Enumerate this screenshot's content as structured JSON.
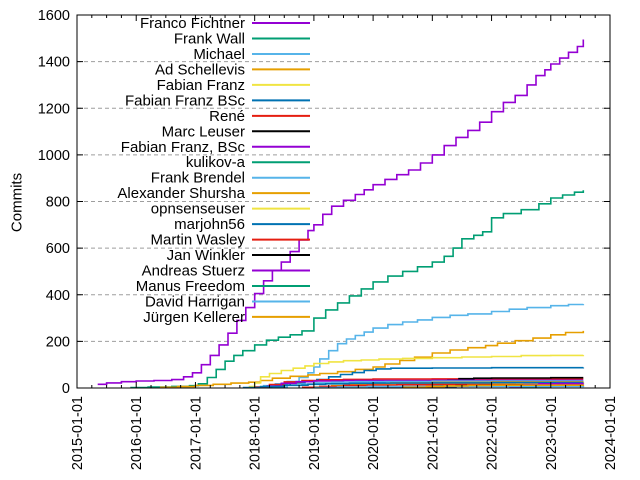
{
  "figure": {
    "background": "#ffffff",
    "border_color": "#000000",
    "grid_color": "#9e9e9e"
  },
  "chart_data": {
    "type": "line",
    "title": "",
    "xlabel": "",
    "ylabel": "Commits",
    "ylim": [
      0,
      1600
    ],
    "ytick_interval": 200,
    "x_start_year": 2015,
    "x_end_year": 2024,
    "xtick_labels": [
      "2015-01-01",
      "2016-01-01",
      "2017-01-01",
      "2018-01-01",
      "2019-01-01",
      "2020-01-01",
      "2021-01-01",
      "2022-01-01",
      "2023-01-01",
      "2024-01-01"
    ],
    "grid": "horizontal-dashed",
    "legend_position": "inside-top-left",
    "line_mode": "step-after",
    "palette": [
      "#9400d3",
      "#009e73",
      "#56b4e9",
      "#e69f00",
      "#f0e442",
      "#0072b2",
      "#e51e10",
      "#000000"
    ],
    "series": [
      {
        "name": "Franco Fichtner",
        "color": "#9400d3",
        "points": [
          [
            2015.35,
            16
          ],
          [
            2015.5,
            22
          ],
          [
            2015.75,
            27
          ],
          [
            2016.0,
            30
          ],
          [
            2016.3,
            32
          ],
          [
            2016.6,
            36
          ],
          [
            2016.8,
            48
          ],
          [
            2016.95,
            65
          ],
          [
            2017.1,
            100
          ],
          [
            2017.25,
            140
          ],
          [
            2017.4,
            185
          ],
          [
            2017.55,
            235
          ],
          [
            2017.7,
            290
          ],
          [
            2017.85,
            345
          ],
          [
            2018.0,
            405
          ],
          [
            2018.15,
            460
          ],
          [
            2018.3,
            505
          ],
          [
            2018.45,
            540
          ],
          [
            2018.6,
            585
          ],
          [
            2018.75,
            635
          ],
          [
            2018.9,
            675
          ],
          [
            2019.0,
            700
          ],
          [
            2019.15,
            745
          ],
          [
            2019.3,
            780
          ],
          [
            2019.5,
            805
          ],
          [
            2019.7,
            830
          ],
          [
            2019.85,
            850
          ],
          [
            2020.0,
            872
          ],
          [
            2020.2,
            895
          ],
          [
            2020.4,
            915
          ],
          [
            2020.6,
            935
          ],
          [
            2020.8,
            965
          ],
          [
            2021.0,
            1000
          ],
          [
            2021.2,
            1040
          ],
          [
            2021.4,
            1075
          ],
          [
            2021.6,
            1105
          ],
          [
            2021.8,
            1140
          ],
          [
            2022.0,
            1185
          ],
          [
            2022.2,
            1225
          ],
          [
            2022.4,
            1255
          ],
          [
            2022.6,
            1300
          ],
          [
            2022.75,
            1340
          ],
          [
            2022.9,
            1365
          ],
          [
            2023.0,
            1390
          ],
          [
            2023.15,
            1415
          ],
          [
            2023.3,
            1440
          ],
          [
            2023.45,
            1465
          ],
          [
            2023.55,
            1495
          ]
        ]
      },
      {
        "name": "Frank Wall",
        "color": "#009e73",
        "points": [
          [
            2015.9,
            2
          ],
          [
            2016.2,
            4
          ],
          [
            2016.6,
            7
          ],
          [
            2016.9,
            10
          ],
          [
            2017.05,
            18
          ],
          [
            2017.2,
            45
          ],
          [
            2017.35,
            80
          ],
          [
            2017.5,
            115
          ],
          [
            2017.65,
            140
          ],
          [
            2017.8,
            160
          ],
          [
            2018.0,
            185
          ],
          [
            2018.2,
            205
          ],
          [
            2018.4,
            218
          ],
          [
            2018.6,
            228
          ],
          [
            2018.8,
            245
          ],
          [
            2019.0,
            300
          ],
          [
            2019.2,
            335
          ],
          [
            2019.4,
            365
          ],
          [
            2019.6,
            395
          ],
          [
            2019.8,
            425
          ],
          [
            2020.0,
            455
          ],
          [
            2020.25,
            480
          ],
          [
            2020.5,
            500
          ],
          [
            2020.75,
            520
          ],
          [
            2021.0,
            540
          ],
          [
            2021.2,
            565
          ],
          [
            2021.35,
            600
          ],
          [
            2021.5,
            640
          ],
          [
            2021.7,
            655
          ],
          [
            2021.85,
            670
          ],
          [
            2022.0,
            730
          ],
          [
            2022.2,
            748
          ],
          [
            2022.5,
            765
          ],
          [
            2022.8,
            790
          ],
          [
            2023.0,
            815
          ],
          [
            2023.2,
            828
          ],
          [
            2023.4,
            840
          ],
          [
            2023.55,
            848
          ]
        ]
      },
      {
        "name": "Michael",
        "color": "#56b4e9",
        "points": [
          [
            2017.95,
            4
          ],
          [
            2018.15,
            10
          ],
          [
            2018.35,
            18
          ],
          [
            2018.55,
            28
          ],
          [
            2018.75,
            45
          ],
          [
            2018.9,
            65
          ],
          [
            2019.0,
            90
          ],
          [
            2019.1,
            125
          ],
          [
            2019.25,
            160
          ],
          [
            2019.4,
            190
          ],
          [
            2019.55,
            210
          ],
          [
            2019.7,
            225
          ],
          [
            2019.85,
            240
          ],
          [
            2020.0,
            257
          ],
          [
            2020.25,
            272
          ],
          [
            2020.5,
            283
          ],
          [
            2020.75,
            292
          ],
          [
            2021.0,
            303
          ],
          [
            2021.3,
            312
          ],
          [
            2021.6,
            318
          ],
          [
            2022.0,
            328
          ],
          [
            2022.3,
            338
          ],
          [
            2022.6,
            345
          ],
          [
            2023.0,
            353
          ],
          [
            2023.3,
            358
          ],
          [
            2023.55,
            360
          ]
        ]
      },
      {
        "name": "Ad Schellevis",
        "color": "#e69f00",
        "points": [
          [
            2016.4,
            3
          ],
          [
            2016.7,
            6
          ],
          [
            2017.0,
            11
          ],
          [
            2017.3,
            16
          ],
          [
            2017.6,
            21
          ],
          [
            2017.9,
            25
          ],
          [
            2018.1,
            32
          ],
          [
            2018.3,
            42
          ],
          [
            2018.6,
            50
          ],
          [
            2018.9,
            56
          ],
          [
            2019.1,
            62
          ],
          [
            2019.4,
            70
          ],
          [
            2019.7,
            80
          ],
          [
            2020.0,
            90
          ],
          [
            2020.2,
            103
          ],
          [
            2020.45,
            118
          ],
          [
            2020.7,
            132
          ],
          [
            2021.0,
            150
          ],
          [
            2021.3,
            163
          ],
          [
            2021.6,
            173
          ],
          [
            2021.9,
            182
          ],
          [
            2022.1,
            192
          ],
          [
            2022.4,
            203
          ],
          [
            2022.7,
            214
          ],
          [
            2023.0,
            228
          ],
          [
            2023.25,
            238
          ],
          [
            2023.55,
            245
          ]
        ]
      },
      {
        "name": "Fabian Franz",
        "color": "#f0e442",
        "points": [
          [
            2017.9,
            6
          ],
          [
            2018.0,
            22
          ],
          [
            2018.1,
            48
          ],
          [
            2018.25,
            62
          ],
          [
            2018.45,
            75
          ],
          [
            2018.65,
            85
          ],
          [
            2018.85,
            95
          ],
          [
            2019.0,
            105
          ],
          [
            2019.25,
            112
          ],
          [
            2019.5,
            117
          ],
          [
            2019.8,
            120
          ],
          [
            2020.1,
            124
          ],
          [
            2020.5,
            127
          ],
          [
            2021.0,
            130
          ],
          [
            2021.5,
            133
          ],
          [
            2022.0,
            135
          ],
          [
            2022.5,
            139
          ],
          [
            2023.0,
            140
          ],
          [
            2023.55,
            141
          ]
        ]
      },
      {
        "name": "Fabian Franz BSc",
        "color": "#0072b2",
        "points": [
          [
            2018.1,
            4
          ],
          [
            2018.35,
            12
          ],
          [
            2018.6,
            22
          ],
          [
            2018.85,
            30
          ],
          [
            2019.05,
            36
          ],
          [
            2019.25,
            48
          ],
          [
            2019.45,
            58
          ],
          [
            2019.65,
            66
          ],
          [
            2019.85,
            75
          ],
          [
            2020.05,
            82
          ],
          [
            2020.3,
            85
          ],
          [
            2021.0,
            86
          ],
          [
            2022.0,
            87
          ],
          [
            2023.55,
            88
          ]
        ]
      },
      {
        "name": "René",
        "color": "#e51e10",
        "points": [
          [
            2018.0,
            4
          ],
          [
            2018.25,
            15
          ],
          [
            2018.5,
            26
          ],
          [
            2018.8,
            32
          ],
          [
            2019.1,
            35
          ],
          [
            2019.5,
            37
          ],
          [
            2020.0,
            38
          ],
          [
            2021.0,
            39
          ],
          [
            2022.0,
            40
          ],
          [
            2023.55,
            40
          ]
        ]
      },
      {
        "name": "Marc Leuser",
        "color": "#000000",
        "points": [
          [
            2021.25,
            34
          ],
          [
            2021.45,
            40
          ],
          [
            2021.7,
            42
          ],
          [
            2022.0,
            43
          ],
          [
            2022.5,
            43
          ],
          [
            2023.0,
            44
          ],
          [
            2023.55,
            44
          ]
        ]
      },
      {
        "name": "Fabian Franz, BSc",
        "color": "#9400d3",
        "points": [
          [
            2018.2,
            8
          ],
          [
            2018.45,
            20
          ],
          [
            2018.7,
            27
          ],
          [
            2019.0,
            30
          ],
          [
            2019.5,
            32
          ],
          [
            2020.0,
            32
          ],
          [
            2021.0,
            33
          ],
          [
            2022.0,
            33
          ],
          [
            2023.55,
            33
          ]
        ]
      },
      {
        "name": "kulikov-a",
        "color": "#009e73",
        "points": [
          [
            2020.8,
            4
          ],
          [
            2021.0,
            10
          ],
          [
            2021.25,
            16
          ],
          [
            2021.6,
            20
          ],
          [
            2022.0,
            23
          ],
          [
            2022.4,
            25
          ],
          [
            2022.8,
            26
          ],
          [
            2023.2,
            27
          ],
          [
            2023.55,
            27
          ]
        ]
      },
      {
        "name": "Frank Brendel",
        "color": "#56b4e9",
        "points": [
          [
            2018.3,
            4
          ],
          [
            2018.55,
            11
          ],
          [
            2018.8,
            17
          ],
          [
            2019.0,
            22
          ],
          [
            2019.3,
            25
          ],
          [
            2019.7,
            27
          ],
          [
            2020.2,
            28
          ],
          [
            2021.0,
            29
          ],
          [
            2022.0,
            30
          ],
          [
            2023.55,
            30
          ]
        ]
      },
      {
        "name": "Alexander Shursha",
        "color": "#e69f00",
        "points": [
          [
            2019.0,
            4
          ],
          [
            2019.3,
            10
          ],
          [
            2019.6,
            15
          ],
          [
            2019.9,
            19
          ],
          [
            2020.3,
            22
          ],
          [
            2021.0,
            24
          ],
          [
            2022.0,
            26
          ],
          [
            2023.55,
            27
          ]
        ]
      },
      {
        "name": "opnsenseuser",
        "color": "#f0e442",
        "points": [
          [
            2019.2,
            4
          ],
          [
            2019.5,
            9
          ],
          [
            2019.9,
            13
          ],
          [
            2020.3,
            15
          ],
          [
            2021.0,
            16
          ],
          [
            2022.0,
            17
          ],
          [
            2023.55,
            18
          ]
        ]
      },
      {
        "name": "marjohn56",
        "color": "#0072b2",
        "points": [
          [
            2017.8,
            2
          ],
          [
            2018.1,
            6
          ],
          [
            2018.5,
            12
          ],
          [
            2018.9,
            16
          ],
          [
            2019.2,
            18
          ],
          [
            2019.6,
            20
          ],
          [
            2020.0,
            21
          ],
          [
            2021.0,
            22
          ],
          [
            2022.0,
            23
          ],
          [
            2023.55,
            23
          ]
        ]
      },
      {
        "name": "Martin Wasley",
        "color": "#e51e10",
        "points": [
          [
            2018.8,
            3
          ],
          [
            2019.1,
            7
          ],
          [
            2019.5,
            11
          ],
          [
            2019.9,
            13
          ],
          [
            2020.4,
            14
          ],
          [
            2021.0,
            15
          ],
          [
            2023.55,
            15
          ]
        ]
      },
      {
        "name": "Jan Winkler",
        "color": "#000000",
        "points": [
          [
            2019.6,
            2
          ],
          [
            2020.2,
            3
          ],
          [
            2020.9,
            3
          ],
          [
            2021.4,
            10
          ],
          [
            2021.8,
            11
          ],
          [
            2022.3,
            12
          ],
          [
            2023.55,
            12
          ]
        ]
      },
      {
        "name": "Andreas Stuerz",
        "color": "#9400d3",
        "points": [
          [
            2022.3,
            4
          ],
          [
            2022.55,
            14
          ],
          [
            2022.8,
            18
          ],
          [
            2023.1,
            19
          ],
          [
            2023.55,
            20
          ]
        ]
      },
      {
        "name": "Manus Freedom",
        "color": "#009e73",
        "points": [
          [
            2022.5,
            2
          ],
          [
            2022.75,
            6
          ],
          [
            2023.0,
            8
          ],
          [
            2023.3,
            9
          ],
          [
            2023.55,
            10
          ]
        ]
      },
      {
        "name": "David Harrigan",
        "color": "#56b4e9",
        "points": [
          [
            2019.0,
            2
          ],
          [
            2019.4,
            4
          ],
          [
            2019.9,
            6
          ],
          [
            2020.5,
            7
          ],
          [
            2021.5,
            7
          ],
          [
            2023.55,
            8
          ]
        ]
      },
      {
        "name": "Jürgen Kellerer",
        "color": "#e69f00",
        "points": [
          [
            2020.5,
            3
          ],
          [
            2020.9,
            6
          ],
          [
            2021.2,
            9
          ],
          [
            2021.6,
            11
          ],
          [
            2022.0,
            12
          ],
          [
            2023.55,
            13
          ]
        ]
      }
    ]
  }
}
